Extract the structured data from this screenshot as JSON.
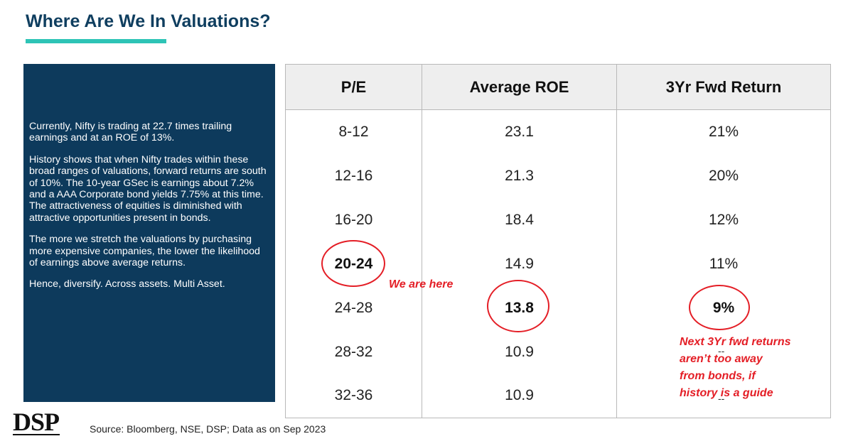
{
  "slide": {
    "title": "Where Are We In Valuations?",
    "accent_color": "#2ec4b6",
    "title_color": "#0f3e5f"
  },
  "side_panel": {
    "background": "#0d3a5c",
    "paragraphs": [
      "Currently, Nifty is trading at 22.7 times trailing earnings and at an ROE of 13%.",
      "History shows that when Nifty trades within these broad ranges of valuations, forward returns are south of 10%. The 10-year GSec is earnings about 7.2% and a AAA Corporate bond yields 7.75% at this time. The attractiveness of equities is diminished with attractive opportunities present in bonds.",
      "The more we stretch the valuations by purchasing more expensive companies, the lower the likelihood of earnings above average returns.",
      "Hence, diversify. Across assets. Multi Asset."
    ]
  },
  "table": {
    "headers": [
      "P/E",
      "Average ROE",
      "3Yr Fwd Return"
    ],
    "rows": [
      [
        "8-12",
        "23.1",
        "21%"
      ],
      [
        "12-16",
        "21.3",
        "20%"
      ],
      [
        "16-20",
        "18.4",
        "12%"
      ],
      [
        "20-24",
        "14.9",
        "11%"
      ],
      [
        "24-28",
        "13.8",
        "9%"
      ],
      [
        "28-32",
        "10.9",
        ""
      ],
      [
        "32-36",
        "10.9",
        ""
      ]
    ]
  },
  "annotations": {
    "we_are_here": "We are here",
    "fwd_note": [
      "Next 3Yr fwd returns",
      "aren’t too away",
      "from bonds, if",
      "history is a guide"
    ],
    "circle_color": "#e41e26",
    "dash_a": "--",
    "dash_b": "--"
  },
  "footer": {
    "logo": "DSP",
    "source": "Source: Bloomberg, NSE, DSP; Data as on Sep 2023"
  }
}
